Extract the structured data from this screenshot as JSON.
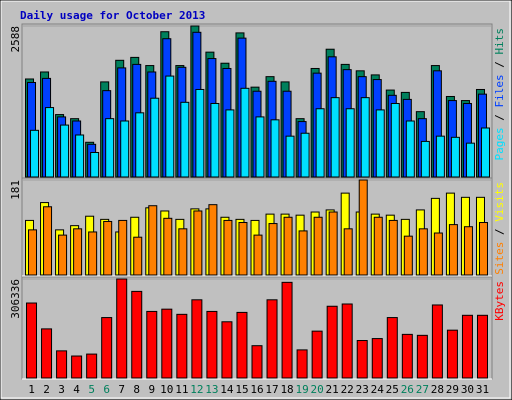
{
  "chart_data": {
    "type": "bar",
    "title": "Daily usage for October 2013",
    "categories": [
      "1",
      "2",
      "3",
      "4",
      "5",
      "6",
      "7",
      "8",
      "9",
      "10",
      "11",
      "12",
      "13",
      "14",
      "15",
      "16",
      "17",
      "18",
      "19",
      "20",
      "21",
      "22",
      "23",
      "24",
      "25",
      "26",
      "27",
      "28",
      "29",
      "30",
      "31"
    ],
    "category_colors": [
      "#000000",
      "#000000",
      "#000000",
      "#000000",
      "#00805c",
      "#00805c",
      "#000000",
      "#000000",
      "#000000",
      "#000000",
      "#000000",
      "#00805c",
      "#00805c",
      "#000000",
      "#000000",
      "#000000",
      "#000000",
      "#000000",
      "#00805c",
      "#00805c",
      "#000000",
      "#000000",
      "#000000",
      "#000000",
      "#000000",
      "#00805c",
      "#00805c",
      "#000000",
      "#000000",
      "#000000",
      "#000000"
    ],
    "legend_separator": " / ",
    "panels": [
      {
        "ylim": [
          0,
          2588
        ],
        "yticks": [
          2588
        ],
        "series": [
          {
            "name": "Hits",
            "color": "#00805c",
            "values": [
              1680,
              1800,
              1070,
              1000,
              595,
              1630,
              2000,
              2050,
              1910,
              2490,
              1910,
              2588,
              2140,
              1950,
              2470,
              1540,
              1720,
              1630,
              1000,
              1860,
              2190,
              1930,
              1820,
              1750,
              1490,
              1450,
              1120,
              1910,
              1380,
              1310,
              1500
            ]
          },
          {
            "name": "Files",
            "color": "#0040ff",
            "values": [
              1620,
              1690,
              1030,
              960,
              560,
              1480,
              1870,
              1930,
              1800,
              2370,
              1880,
              2480,
              2030,
              1860,
              2380,
              1470,
              1640,
              1470,
              950,
              1780,
              2060,
              1840,
              1720,
              1670,
              1400,
              1330,
              1000,
              1820,
              1310,
              1260,
              1420
            ]
          },
          {
            "name": "Pages",
            "color": "#00e0ff",
            "values": [
              800,
              1190,
              890,
              720,
              420,
              1000,
              960,
              1100,
              1350,
              1730,
              1280,
              1500,
              1260,
              1150,
              1520,
              1030,
              980,
              700,
              750,
              1170,
              1360,
              1170,
              1360,
              1150,
              1260,
              960,
              610,
              700,
              680,
              580,
              840
            ]
          }
        ]
      },
      {
        "ylim": [
          0,
          181
        ],
        "yticks": [
          181
        ],
        "series": [
          {
            "name": "Visits",
            "color": "#ffff00",
            "values": [
              104,
              138,
              86,
              94,
              112,
              106,
              82,
              110,
              128,
              122,
              106,
              126,
              126,
              110,
              106,
              104,
              116,
              116,
              114,
              120,
              124,
              156,
              120,
              116,
              114,
              106,
              124,
              146,
              156,
              148,
              148
            ]
          },
          {
            "name": "Sites",
            "color": "#ff8000",
            "values": [
              86,
              130,
              76,
              88,
              82,
              102,
              104,
              72,
              132,
              108,
              88,
              122,
              134,
              104,
              100,
              76,
              98,
              110,
              84,
              110,
              120,
              88,
              181,
              110,
              104,
              74,
              88,
              80,
              96,
              92,
              100
            ]
          }
        ]
      },
      {
        "ylim": [
          0,
          306336
        ],
        "yticks": [
          306336
        ],
        "series": [
          {
            "name": "KBytes",
            "color": "#ff0000",
            "values": [
              232000,
              152000,
              84000,
              68000,
              74000,
              187000,
              306336,
              268000,
              206000,
              213000,
              197000,
              242000,
              206000,
              174000,
              203000,
              100000,
              242000,
              296000,
              87000,
              145000,
              222000,
              229000,
              116000,
              122000,
              187000,
              135000,
              132000,
              226000,
              148000,
              194000,
              194000
            ]
          }
        ]
      }
    ]
  }
}
